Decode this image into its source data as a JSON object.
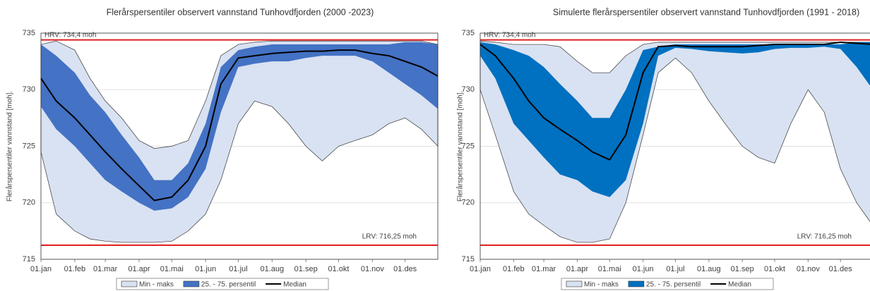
{
  "chart_data": [
    {
      "type": "band",
      "title": "Flerårspersentiler observert vannstand Tunhovdfjorden (2000 -2023)",
      "y_label": "Flerårspersentiler vannstand [moh].",
      "x": [
        1,
        15,
        32,
        46,
        60,
        75,
        91,
        105,
        121,
        136,
        152,
        166,
        182,
        197,
        213,
        228,
        244,
        259,
        274,
        289,
        305,
        320,
        335,
        350,
        365
      ],
      "xlim": [
        1,
        365
      ],
      "xticks": [
        {
          "value": 1,
          "label": "01.jan"
        },
        {
          "value": 32,
          "label": "01.feb"
        },
        {
          "value": 60,
          "label": "01.mar"
        },
        {
          "value": 91,
          "label": "01.apr"
        },
        {
          "value": 121,
          "label": "01.mai"
        },
        {
          "value": 152,
          "label": "01.jun"
        },
        {
          "value": 182,
          "label": "01.jul"
        },
        {
          "value": 213,
          "label": "01.aug"
        },
        {
          "value": 244,
          "label": "01.sep"
        },
        {
          "value": 274,
          "label": "01.okt"
        },
        {
          "value": 305,
          "label": "01.nov"
        },
        {
          "value": 335,
          "label": "01.des"
        }
      ],
      "ylim": [
        715,
        735
      ],
      "yticks": [
        715,
        720,
        725,
        730,
        735
      ],
      "grid": true,
      "reference_lines": [
        {
          "value": 734.4,
          "label": "HRV: 734,4 moh",
          "color": "#e02020"
        },
        {
          "value": 716.25,
          "label": "LRV: 716,25 moh",
          "color": "#e02020"
        }
      ],
      "series": [
        {
          "name": "Min - maks",
          "color": "#d9e2f2",
          "low": [
            724.5,
            719,
            717.5,
            716.8,
            716.6,
            716.5,
            716.5,
            716.5,
            716.6,
            717.5,
            719,
            722,
            727,
            729,
            728.5,
            727,
            725,
            723.7,
            725,
            725.5,
            726,
            727,
            727.5,
            726.5,
            725
          ],
          "high": [
            734,
            734.3,
            733.5,
            731,
            729,
            727.5,
            725.5,
            724.8,
            725,
            725.5,
            729,
            733,
            734,
            734.2,
            734.3,
            734.3,
            734.3,
            734.3,
            734.3,
            734.3,
            734.3,
            734.3,
            734.3,
            734.3,
            734
          ]
        },
        {
          "name": "25. - 75. persentil",
          "color": "#4472c4",
          "low": [
            728.5,
            726.5,
            725,
            723.5,
            722,
            721,
            720,
            719.3,
            719.5,
            720.5,
            723,
            728,
            732,
            732.3,
            732.5,
            732.5,
            732.8,
            733,
            733,
            733,
            732.5,
            731.5,
            730.5,
            729.5,
            728.3
          ],
          "high": [
            734,
            733,
            731.5,
            729.5,
            728,
            726,
            724,
            722,
            722,
            723.5,
            727,
            732,
            733.5,
            733.8,
            734,
            734,
            734,
            734,
            734,
            734,
            734,
            734,
            734.2,
            734.2,
            734
          ]
        },
        {
          "name": "Median",
          "color": "#000000",
          "values": [
            731,
            729,
            727.5,
            726,
            724.5,
            723,
            721.5,
            720.2,
            720.5,
            722,
            725,
            730.5,
            732.8,
            733,
            733.2,
            733.3,
            733.4,
            733.4,
            733.5,
            733.5,
            733.2,
            733,
            732.5,
            732,
            731.2
          ]
        }
      ]
    },
    {
      "type": "band",
      "title": "Simulerte flerårspersentiler observert vannstand Tunhovdfjorden (1991 - 2018)",
      "y_label": "Flerårspersentiler vannstand [moh].",
      "x": [
        1,
        15,
        32,
        46,
        60,
        75,
        91,
        105,
        121,
        136,
        152,
        166,
        182,
        197,
        213,
        228,
        244,
        259,
        274,
        289,
        305,
        320,
        335,
        350,
        365
      ],
      "xlim": [
        1,
        365
      ],
      "xticks": [
        {
          "value": 1,
          "label": "01.jan"
        },
        {
          "value": 32,
          "label": "01.feb"
        },
        {
          "value": 60,
          "label": "01.mar"
        },
        {
          "value": 91,
          "label": "01.apr"
        },
        {
          "value": 121,
          "label": "01.mai"
        },
        {
          "value": 152,
          "label": "01.jun"
        },
        {
          "value": 182,
          "label": "01.jul"
        },
        {
          "value": 213,
          "label": "01.aug"
        },
        {
          "value": 244,
          "label": "01.sep"
        },
        {
          "value": 274,
          "label": "01.okt"
        },
        {
          "value": 305,
          "label": "01.nov"
        },
        {
          "value": 335,
          "label": "01.des"
        }
      ],
      "ylim": [
        715,
        735
      ],
      "yticks": [
        715,
        720,
        725,
        730,
        735
      ],
      "grid": true,
      "reference_lines": [
        {
          "value": 734.4,
          "label": "HRV: 734,4 moh",
          "color": "#e02020"
        },
        {
          "value": 716.25,
          "label": "LRV: 716,25 moh",
          "color": "#e02020"
        }
      ],
      "series": [
        {
          "name": "Min - maks",
          "color": "#d9e2f2",
          "low": [
            730,
            726,
            721,
            719,
            718,
            717,
            716.5,
            716.5,
            716.8,
            720,
            726,
            731.5,
            732.8,
            731.5,
            729,
            727,
            725,
            724,
            723.5,
            727,
            730,
            728,
            723,
            720,
            718
          ],
          "high": [
            734.3,
            734.2,
            734,
            734,
            734,
            733.8,
            732.5,
            731.5,
            731.5,
            733,
            734,
            734.2,
            734.2,
            734.2,
            734.2,
            734.2,
            734.2,
            734.2,
            734.2,
            734.2,
            734.2,
            734.2,
            734.2,
            734.2,
            734.2
          ]
        },
        {
          "name": "25. - 75. persentil",
          "color": "#0070c0",
          "low": [
            733,
            731,
            727,
            725.5,
            724,
            722.5,
            722,
            721,
            720.5,
            722,
            727,
            733,
            733.7,
            733.6,
            733.4,
            733.3,
            733.2,
            733.3,
            733.6,
            733.7,
            733.7,
            733.8,
            733.6,
            732,
            730
          ],
          "high": [
            734.2,
            734,
            733.5,
            733,
            732,
            730.5,
            729,
            727.5,
            727.5,
            730,
            733.5,
            733.8,
            734,
            734,
            734,
            734,
            734,
            734,
            734,
            734,
            734,
            734,
            734,
            734.2,
            734.2
          ]
        },
        {
          "name": "Median",
          "color": "#000000",
          "values": [
            734,
            733,
            731,
            729,
            727.5,
            726.5,
            725.5,
            724.5,
            723.8,
            726,
            731.5,
            733.8,
            733.9,
            733.8,
            733.8,
            733.8,
            733.8,
            733.9,
            734,
            734,
            734,
            734,
            734.2,
            734.1,
            734
          ]
        }
      ]
    }
  ]
}
